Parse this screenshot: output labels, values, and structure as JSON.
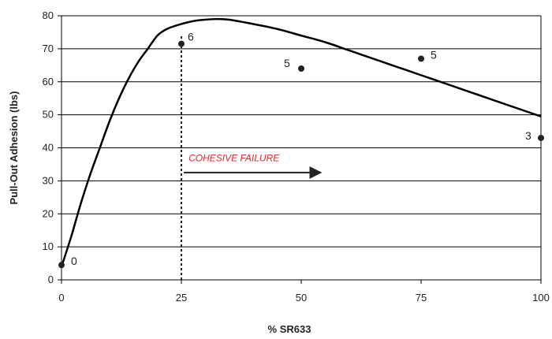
{
  "chart_data": {
    "type": "line",
    "title": "",
    "xlabel": "% SR633",
    "ylabel": "Pull-Out Adhesion (lbs)",
    "xlim": [
      0,
      100
    ],
    "ylim": [
      0,
      80
    ],
    "x_ticks": [
      0,
      25,
      50,
      75,
      100
    ],
    "y_ticks": [
      0,
      10,
      20,
      30,
      40,
      50,
      60,
      70,
      80
    ],
    "grid": "horizontal",
    "curve": {
      "x": [
        0,
        2,
        4,
        6,
        8,
        10,
        12,
        14,
        16,
        18,
        20,
        22,
        25,
        28,
        32,
        35,
        40,
        45,
        50,
        55,
        60,
        65,
        70,
        75,
        80,
        85,
        90,
        95,
        100
      ],
      "y": [
        4,
        13,
        23,
        32,
        40,
        48,
        55,
        61,
        66,
        70,
        74,
        76,
        77.5,
        78.5,
        79,
        78.8,
        77.5,
        76,
        74,
        72,
        69.5,
        67,
        64.5,
        62,
        59.5,
        57,
        54.5,
        52,
        49.5
      ]
    },
    "points": [
      {
        "x": 0,
        "y": 4.5,
        "label": "0"
      },
      {
        "x": 25,
        "y": 71.5,
        "label": "6"
      },
      {
        "x": 50,
        "y": 64,
        "label": "5"
      },
      {
        "x": 75,
        "y": 67,
        "label": "5"
      },
      {
        "x": 100,
        "y": 43,
        "label": "3"
      }
    ],
    "vline": {
      "x": 25
    },
    "annotation": {
      "text": "COHESIVE FAILURE",
      "x": 26.5,
      "y": 36,
      "arrow_from_x": 25.5,
      "arrow_to_x": 54,
      "arrow_y": 32.5
    },
    "colors": {
      "curve": "#000000",
      "points": "#222222",
      "annotation_text": "#e8202a",
      "grid": "#000000"
    }
  }
}
